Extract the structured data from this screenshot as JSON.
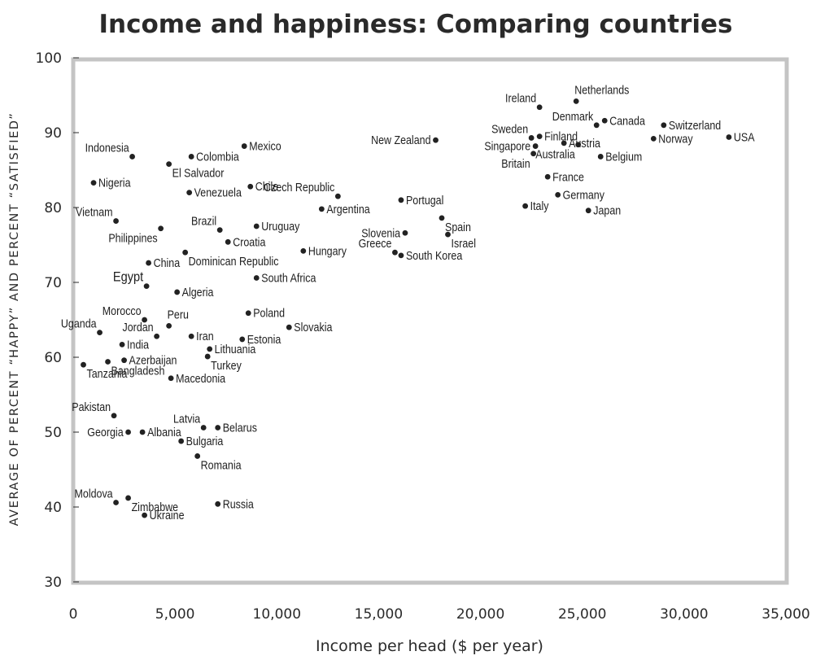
{
  "colors": {
    "frame": "#c4c4c4",
    "point": "#222222",
    "text": "#2a2a2a"
  },
  "chart_data": {
    "type": "scatter",
    "title": "Income and happiness: Comparing countries",
    "xlabel": "Income per head ($ per year)",
    "ylabel": "AVERAGE OF PERCENT “HAPPY” AND PERCENT “SATISFIED”",
    "xlim": [
      0,
      35000
    ],
    "ylim": [
      30,
      100
    ],
    "x_ticks": [
      0,
      5000,
      10000,
      15000,
      20000,
      25000,
      30000,
      35000
    ],
    "x_tick_labels": [
      "0",
      "5,000",
      "10,000",
      "15,000",
      "20,000",
      "25,000",
      "30,000",
      "35,000"
    ],
    "y_ticks": [
      30,
      40,
      50,
      60,
      70,
      80,
      90,
      100
    ],
    "y_tick_labels": [
      "30",
      "40",
      "50",
      "60",
      "70",
      "80",
      "90",
      "100"
    ],
    "grid": false,
    "points": [
      {
        "label": "Indonesia",
        "x": 2900,
        "y": 86.8,
        "pos": "tl"
      },
      {
        "label": "Nigeria",
        "x": 1000,
        "y": 83.3,
        "pos": "r"
      },
      {
        "label": "Vietnam",
        "x": 2100,
        "y": 78.2,
        "pos": "tl"
      },
      {
        "label": "Philippines",
        "x": 4300,
        "y": 77.2,
        "pos": "bl"
      },
      {
        "label": "Egypt",
        "x": 3600,
        "y": 69.5,
        "pos": "tl",
        "big": true
      },
      {
        "label": "China",
        "x": 3700,
        "y": 72.6,
        "pos": "r"
      },
      {
        "label": "Colombia",
        "x": 5800,
        "y": 86.8,
        "pos": "r"
      },
      {
        "label": "El Salvador",
        "x": 4700,
        "y": 85.8,
        "pos": "br"
      },
      {
        "label": "Mexico",
        "x": 8400,
        "y": 88.2,
        "pos": "r"
      },
      {
        "label": "Venezuela",
        "x": 5700,
        "y": 82.0,
        "pos": "r"
      },
      {
        "label": "Chile",
        "x": 8700,
        "y": 82.8,
        "pos": "r"
      },
      {
        "label": "Brazil",
        "x": 7200,
        "y": 77.0,
        "pos": "tl"
      },
      {
        "label": "Uruguay",
        "x": 9000,
        "y": 77.5,
        "pos": "r"
      },
      {
        "label": "Croatia",
        "x": 7600,
        "y": 75.4,
        "pos": "r"
      },
      {
        "label": "Dominican Republic",
        "x": 5500,
        "y": 74.0,
        "pos": "br"
      },
      {
        "label": "South Africa",
        "x": 9000,
        "y": 70.6,
        "pos": "r"
      },
      {
        "label": "Algeria",
        "x": 5100,
        "y": 68.7,
        "pos": "r"
      },
      {
        "label": "Morocco",
        "x": 3500,
        "y": 65.0,
        "pos": "tl"
      },
      {
        "label": "Uganda",
        "x": 1300,
        "y": 63.3,
        "pos": "tl"
      },
      {
        "label": "Jordan",
        "x": 4100,
        "y": 62.8,
        "pos": "tl"
      },
      {
        "label": "Peru",
        "x": 4700,
        "y": 64.2,
        "pos": "tr"
      },
      {
        "label": "Iran",
        "x": 5800,
        "y": 62.8,
        "pos": "r"
      },
      {
        "label": "India",
        "x": 2400,
        "y": 61.7,
        "pos": "r"
      },
      {
        "label": "Azerbaijan",
        "x": 2500,
        "y": 59.6,
        "pos": "r"
      },
      {
        "label": "Bangladesh",
        "x": 1700,
        "y": 59.4,
        "pos": "br"
      },
      {
        "label": "Tanzania",
        "x": 500,
        "y": 59.0,
        "pos": "br"
      },
      {
        "label": "Macedonia",
        "x": 4800,
        "y": 57.2,
        "pos": "r"
      },
      {
        "label": "Lithuania",
        "x": 6700,
        "y": 61.1,
        "pos": "r"
      },
      {
        "label": "Turkey",
        "x": 6600,
        "y": 60.1,
        "pos": "br"
      },
      {
        "label": "Poland",
        "x": 8600,
        "y": 65.9,
        "pos": "r"
      },
      {
        "label": "Estonia",
        "x": 8300,
        "y": 62.4,
        "pos": "r"
      },
      {
        "label": "Slovakia",
        "x": 10600,
        "y": 64.0,
        "pos": "r"
      },
      {
        "label": "Pakistan",
        "x": 2000,
        "y": 52.2,
        "pos": "tl"
      },
      {
        "label": "Georgia",
        "x": 2700,
        "y": 50.0,
        "pos": "l"
      },
      {
        "label": "Albania",
        "x": 3400,
        "y": 50.0,
        "pos": "r"
      },
      {
        "label": "Latvia",
        "x": 6400,
        "y": 50.6,
        "pos": "tl"
      },
      {
        "label": "Belarus",
        "x": 7100,
        "y": 50.6,
        "pos": "r"
      },
      {
        "label": "Bulgaria",
        "x": 5300,
        "y": 48.8,
        "pos": "r"
      },
      {
        "label": "Romania",
        "x": 6100,
        "y": 46.8,
        "pos": "br"
      },
      {
        "label": "Moldova",
        "x": 2100,
        "y": 40.6,
        "pos": "tl"
      },
      {
        "label": "Zimbabwe",
        "x": 2700,
        "y": 41.2,
        "pos": "br"
      },
      {
        "label": "Ukraine",
        "x": 3500,
        "y": 38.9,
        "pos": "r"
      },
      {
        "label": "Russia",
        "x": 7100,
        "y": 40.4,
        "pos": "r"
      },
      {
        "label": "New Zealand",
        "x": 17800,
        "y": 89.0,
        "pos": "l"
      },
      {
        "label": "Czech Republic",
        "x": 13000,
        "y": 81.5,
        "pos": "tl"
      },
      {
        "label": "Argentina",
        "x": 12200,
        "y": 79.8,
        "pos": "r"
      },
      {
        "label": "Portugal",
        "x": 16100,
        "y": 81.0,
        "pos": "r"
      },
      {
        "label": "Slovenia",
        "x": 16300,
        "y": 76.6,
        "pos": "l"
      },
      {
        "label": "Spain",
        "x": 18100,
        "y": 78.6,
        "pos": "br"
      },
      {
        "label": "Israel",
        "x": 18400,
        "y": 76.4,
        "pos": "br"
      },
      {
        "label": "Greece",
        "x": 15800,
        "y": 74.0,
        "pos": "tl"
      },
      {
        "label": "South Korea",
        "x": 16100,
        "y": 73.6,
        "pos": "r"
      },
      {
        "label": "Hungary",
        "x": 11300,
        "y": 74.2,
        "pos": "r"
      },
      {
        "label": "Ireland",
        "x": 22900,
        "y": 93.4,
        "pos": "tl"
      },
      {
        "label": "Netherlands",
        "x": 24700,
        "y": 94.2,
        "pos": "tr"
      },
      {
        "label": "Denmark",
        "x": 25700,
        "y": 91.0,
        "pos": "tl"
      },
      {
        "label": "Canada",
        "x": 26100,
        "y": 91.6,
        "pos": "r"
      },
      {
        "label": "Sweden",
        "x": 22500,
        "y": 89.3,
        "pos": "tl"
      },
      {
        "label": "Finland",
        "x": 22900,
        "y": 89.5,
        "pos": "r"
      },
      {
        "label": "Singapore",
        "x": 22700,
        "y": 88.2,
        "pos": "l"
      },
      {
        "label": "Austria",
        "x": 24100,
        "y": 88.6,
        "pos": "r"
      },
      {
        "label": "Australia",
        "x": 24800,
        "y": 88.4,
        "pos": "bl"
      },
      {
        "label": "Britain",
        "x": 22600,
        "y": 87.2,
        "pos": "bl"
      },
      {
        "label": "Belgium",
        "x": 25900,
        "y": 86.8,
        "pos": "r"
      },
      {
        "label": "France",
        "x": 23300,
        "y": 84.1,
        "pos": "r"
      },
      {
        "label": "Germany",
        "x": 23800,
        "y": 81.7,
        "pos": "r"
      },
      {
        "label": "Italy",
        "x": 22200,
        "y": 80.2,
        "pos": "r"
      },
      {
        "label": "Japan",
        "x": 25300,
        "y": 79.6,
        "pos": "r"
      },
      {
        "label": "Switzerland",
        "x": 29000,
        "y": 91.0,
        "pos": "r"
      },
      {
        "label": "Norway",
        "x": 28500,
        "y": 89.2,
        "pos": "r"
      },
      {
        "label": "USA",
        "x": 32200,
        "y": 89.4,
        "pos": "r"
      }
    ]
  }
}
